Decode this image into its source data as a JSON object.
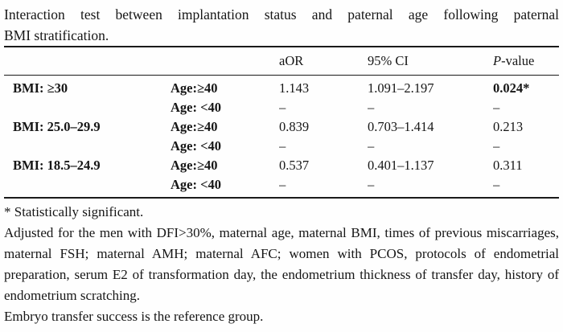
{
  "title": {
    "line1": "Interaction test between implantation status and paternal age following paternal",
    "line2": "BMI stratification."
  },
  "table": {
    "header": {
      "aor": "aOR",
      "ci": "95% CI",
      "p_italic": "P",
      "p_rest": "-value"
    },
    "rows": [
      {
        "bmi": "BMI: ≥30",
        "age": "Age:≥40",
        "aor": "1.143",
        "ci": "1.091–2.197",
        "p": "0.024*",
        "significant": true
      },
      {
        "bmi": "",
        "age": "Age: <40",
        "aor": "–",
        "ci": "–",
        "p": "–",
        "significant": false
      },
      {
        "bmi": "BMI: 25.0–29.9",
        "age": "Age:≥40",
        "aor": "0.839",
        "ci": "0.703–1.414",
        "p": "0.213",
        "significant": false
      },
      {
        "bmi": "",
        "age": "Age: <40",
        "aor": "–",
        "ci": "–",
        "p": "–",
        "significant": false
      },
      {
        "bmi": "BMI: 18.5–24.9",
        "age": "Age:≥40",
        "aor": "0.537",
        "ci": "0.401–1.137",
        "p": "0.311",
        "significant": false
      },
      {
        "bmi": "",
        "age": "Age: <40",
        "aor": "–",
        "ci": "–",
        "p": "–",
        "significant": false
      }
    ]
  },
  "footnotes": {
    "significance": "* Statistically significant.",
    "adjustment": "Adjusted for the men with DFI>30%, maternal age, maternal BMI, times of previous miscarriages, maternal FSH; maternal AMH; maternal AFC; women with PCOS, protocols of endometrial preparation, serum E2 of transformation day, the endometrium thickness of transfer day, history of endometrium scratching.",
    "reference": "Embryo transfer success is the reference group."
  },
  "colors": {
    "text": "#161616",
    "rule": "#1a1a1a",
    "background": "#fefefe"
  }
}
